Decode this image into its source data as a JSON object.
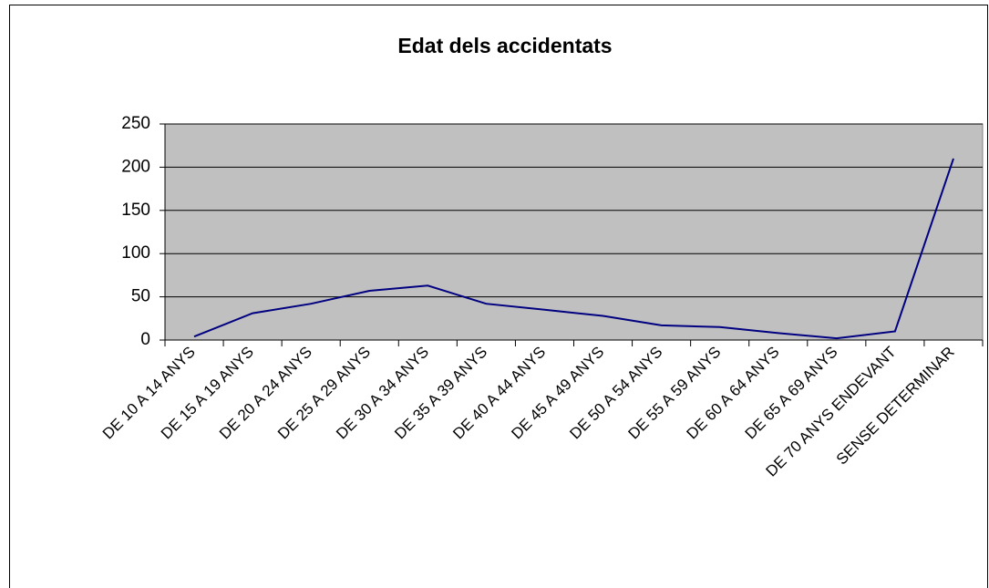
{
  "chart_data": {
    "type": "line",
    "title": "Edat dels accidentats",
    "categories": [
      "DE 10 A 14 ANYS",
      "DE 15 A 19 ANYS",
      "DE 20 A 24 ANYS",
      "DE 25 A 29 ANYS",
      "DE 30 A 34 ANYS",
      "DE 35 A 39 ANYS",
      "DE 40 A 44 ANYS",
      "DE 45 A 49 ANYS",
      "DE 50 A 54 ANYS",
      "DE 55 A 59 ANYS",
      "DE 60 A 64 ANYS",
      "DE 65 A 69 ANYS",
      "DE 70 ANYS ENDEVANT",
      "SENSE DETERMINAR"
    ],
    "values": [
      4,
      31,
      42,
      57,
      63,
      42,
      35,
      28,
      17,
      15,
      8,
      2,
      10,
      210
    ],
    "color": "#000080",
    "ylim": [
      0,
      250
    ],
    "yticks": [
      0,
      50,
      100,
      150,
      200,
      250
    ],
    "grid": true
  }
}
